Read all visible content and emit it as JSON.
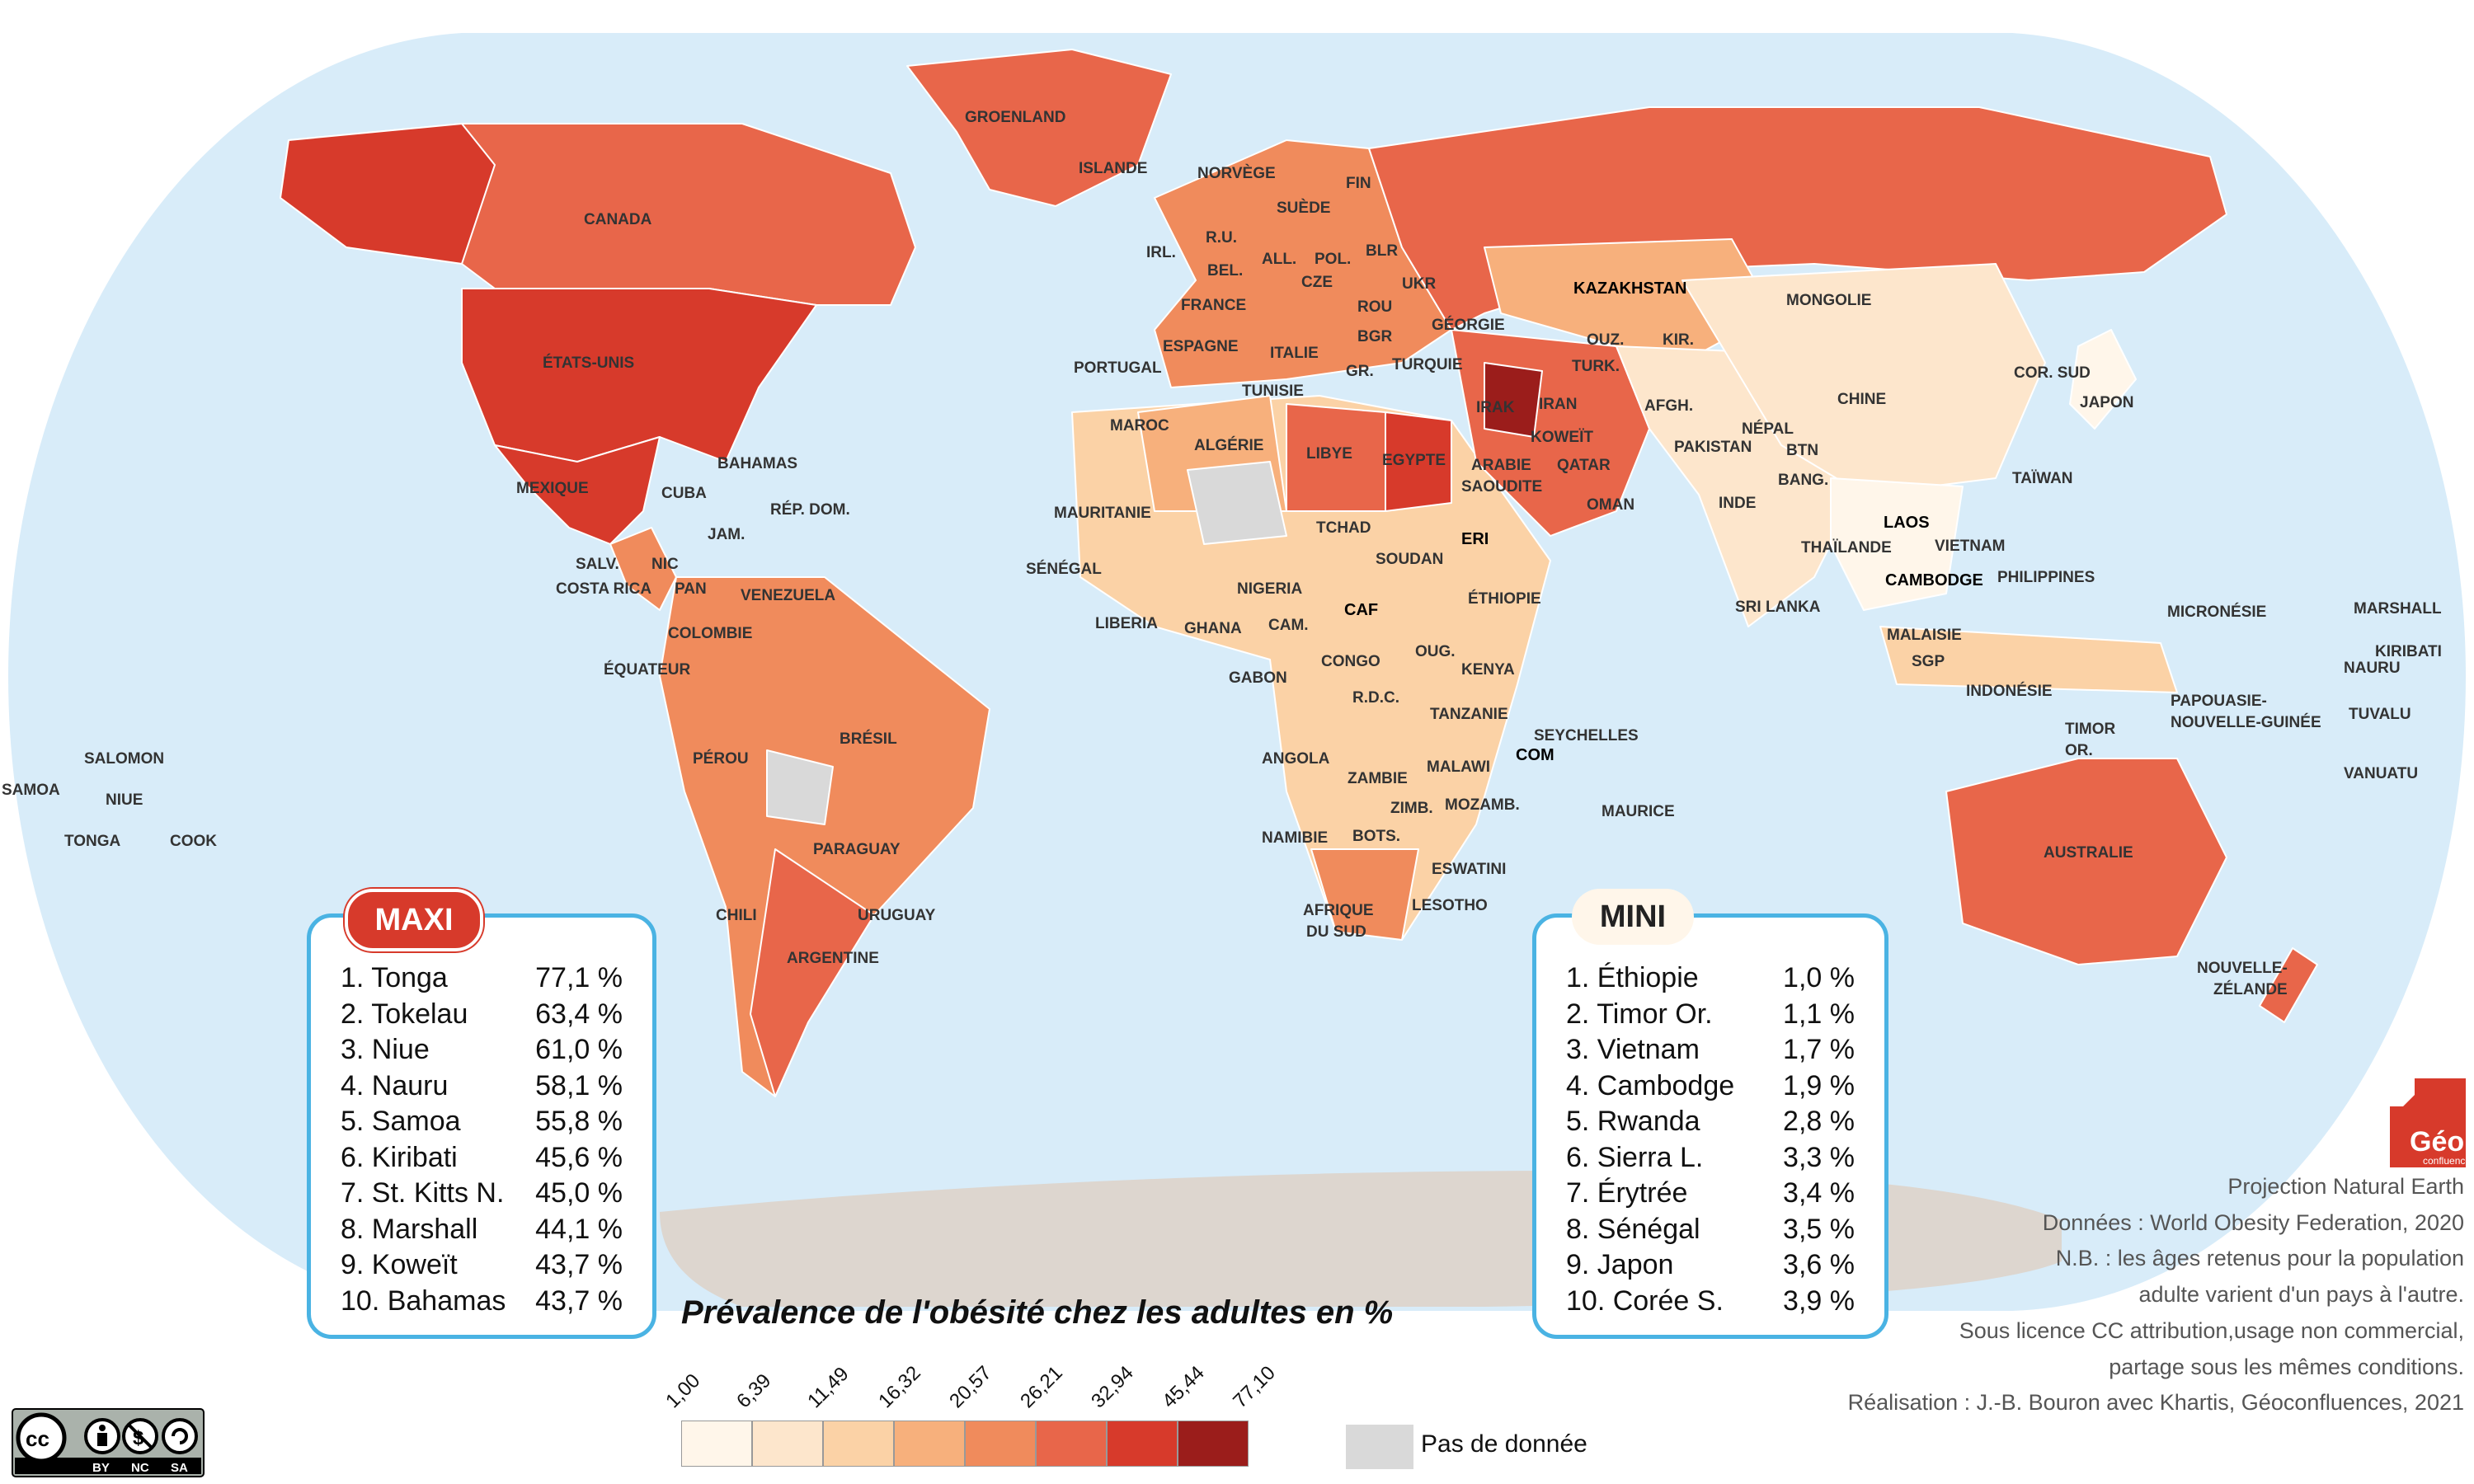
{
  "map": {
    "title": "Prévalence de l'obésité chez les adultes en %",
    "projection": "Projection Natural Earth",
    "colors": {
      "ocean": "#d8ecf9",
      "coast": "#8ccbed",
      "antarctica": "#ddd6cf",
      "nodata": "#d9d9d9",
      "c1": "#fff6ea",
      "c2": "#fde6cc",
      "c3": "#fbd2a6",
      "c4": "#f7b07c",
      "c5": "#f08b5c",
      "c6": "#e8664a",
      "c7": "#d73a2b",
      "c8": "#9b1d1b"
    },
    "labels": [
      {
        "text": "GROENLAND",
        "bold": false
      },
      {
        "text": "ISLANDE",
        "bold": false
      },
      {
        "text": "CANADA",
        "bold": false
      },
      {
        "text": "ÉTATS-UNIS",
        "bold": false
      },
      {
        "text": "MEXIQUE",
        "bold": false
      },
      {
        "text": "BAHAMAS",
        "bold": false
      },
      {
        "text": "CUBA",
        "bold": false
      },
      {
        "text": "RÉP. DOM.",
        "bold": false
      },
      {
        "text": "JAM.",
        "bold": false
      },
      {
        "text": "SALV.",
        "bold": false
      },
      {
        "text": "NIC",
        "bold": false
      },
      {
        "text": "COSTA RICA",
        "bold": false
      },
      {
        "text": "PAN",
        "bold": false
      },
      {
        "text": "VENEZUELA",
        "bold": false
      },
      {
        "text": "COLOMBIE",
        "bold": false
      },
      {
        "text": "ÉQUATEUR",
        "bold": false
      },
      {
        "text": "PÉROU",
        "bold": false
      },
      {
        "text": "BRÉSIL",
        "bold": false
      },
      {
        "text": "PARAGUAY",
        "bold": false
      },
      {
        "text": "CHILI",
        "bold": false
      },
      {
        "text": "URUGUAY",
        "bold": false
      },
      {
        "text": "ARGENTINE",
        "bold": false
      },
      {
        "text": "NORVÈGE",
        "bold": false
      },
      {
        "text": "SUÈDE",
        "bold": false
      },
      {
        "text": "FIN",
        "bold": false
      },
      {
        "text": "IRL.",
        "bold": false
      },
      {
        "text": "R.U.",
        "bold": false
      },
      {
        "text": "BEL.",
        "bold": false
      },
      {
        "text": "ALL.",
        "bold": false
      },
      {
        "text": "POL.",
        "bold": false
      },
      {
        "text": "BLR",
        "bold": false
      },
      {
        "text": "CZE",
        "bold": false
      },
      {
        "text": "UKR",
        "bold": false
      },
      {
        "text": "FRANCE",
        "bold": false
      },
      {
        "text": "ROU",
        "bold": false
      },
      {
        "text": "ESPAGNE",
        "bold": false
      },
      {
        "text": "ITALIE",
        "bold": false
      },
      {
        "text": "BGR",
        "bold": false
      },
      {
        "text": "GÉORGIE",
        "bold": false
      },
      {
        "text": "PORTUGAL",
        "bold": false
      },
      {
        "text": "GR.",
        "bold": false
      },
      {
        "text": "TURQUIE",
        "bold": false
      },
      {
        "text": "TUNISIE",
        "bold": false
      },
      {
        "text": "MAROC",
        "bold": false
      },
      {
        "text": "ALGÉRIE",
        "bold": false
      },
      {
        "text": "LIBYE",
        "bold": false
      },
      {
        "text": "EGYPTE",
        "bold": false
      },
      {
        "text": "MAURITANIE",
        "bold": false
      },
      {
        "text": "TCHAD",
        "bold": false
      },
      {
        "text": "SOUDAN",
        "bold": false
      },
      {
        "text": "ERI",
        "bold": true
      },
      {
        "text": "SÉNÉGAL",
        "bold": false
      },
      {
        "text": "NIGERIA",
        "bold": false
      },
      {
        "text": "CAF",
        "bold": true
      },
      {
        "text": "ÉTHIOPIE",
        "bold": false
      },
      {
        "text": "LIBERIA",
        "bold": false
      },
      {
        "text": "GHANA",
        "bold": false
      },
      {
        "text": "CAM.",
        "bold": false
      },
      {
        "text": "OUG.",
        "bold": false
      },
      {
        "text": "CONGO",
        "bold": false
      },
      {
        "text": "GABON",
        "bold": false
      },
      {
        "text": "KENYA",
        "bold": false
      },
      {
        "text": "R.D.C.",
        "bold": false
      },
      {
        "text": "TANZANIE",
        "bold": false
      },
      {
        "text": "SEYCHELLES",
        "bold": false
      },
      {
        "text": "ANGOLA",
        "bold": false
      },
      {
        "text": "MALAWI",
        "bold": false
      },
      {
        "text": "COM",
        "bold": true
      },
      {
        "text": "ZAMBIE",
        "bold": false
      },
      {
        "text": "ZIMB.",
        "bold": false
      },
      {
        "text": "MOZAMB.",
        "bold": false
      },
      {
        "text": "MAURICE",
        "bold": false
      },
      {
        "text": "NAMIBIE",
        "bold": false
      },
      {
        "text": "BOTS.",
        "bold": false
      },
      {
        "text": "ESWATINI",
        "bold": false
      },
      {
        "text": "LESOTHO",
        "bold": false
      },
      {
        "text": "AFRIQUE",
        "bold": false
      },
      {
        "text": "DU SUD",
        "bold": false
      },
      {
        "text": "KAZAKHSTAN",
        "bold": true
      },
      {
        "text": "MONGOLIE",
        "bold": false
      },
      {
        "text": "OUZ.",
        "bold": false
      },
      {
        "text": "KIR.",
        "bold": false
      },
      {
        "text": "TURK.",
        "bold": false
      },
      {
        "text": "IRAN",
        "bold": false
      },
      {
        "text": "AFGH.",
        "bold": false
      },
      {
        "text": "IRAK",
        "bold": false
      },
      {
        "text": "KOWEÏT",
        "bold": false
      },
      {
        "text": "QATAR",
        "bold": false
      },
      {
        "text": "ARABIE",
        "bold": false
      },
      {
        "text": "SAOUDITE",
        "bold": false
      },
      {
        "text": "OMAN",
        "bold": false
      },
      {
        "text": "PAKISTAN",
        "bold": false
      },
      {
        "text": "NÉPAL",
        "bold": false
      },
      {
        "text": "BTN",
        "bold": false
      },
      {
        "text": "BANG.",
        "bold": false
      },
      {
        "text": "INDE",
        "bold": false
      },
      {
        "text": "CHINE",
        "bold": false
      },
      {
        "text": "COR. SUD",
        "bold": false
      },
      {
        "text": "JAPON",
        "bold": false
      },
      {
        "text": "TAÏWAN",
        "bold": false
      },
      {
        "text": "LAOS",
        "bold": true
      },
      {
        "text": "VIETNAM",
        "bold": false
      },
      {
        "text": "THAÏLANDE",
        "bold": false
      },
      {
        "text": "CAMBODGE",
        "bold": true
      },
      {
        "text": "PHILIPPINES",
        "bold": false
      },
      {
        "text": "SRI LANKA",
        "bold": false
      },
      {
        "text": "MALAISIE",
        "bold": false
      },
      {
        "text": "SGP",
        "bold": false
      },
      {
        "text": "INDONÉSIE",
        "bold": false
      },
      {
        "text": "MICRONÉSIE",
        "bold": false
      },
      {
        "text": "MARSHALL",
        "bold": false
      },
      {
        "text": "KIRIBATI",
        "bold": false
      },
      {
        "text": "NAURU",
        "bold": false
      },
      {
        "text": "PAPOUASIE-",
        "bold": false
      },
      {
        "text": "NOUVELLE-GUINÉE",
        "bold": false
      },
      {
        "text": "TUVALU",
        "bold": false
      },
      {
        "text": "TIMOR",
        "bold": false
      },
      {
        "text": "OR.",
        "bold": false
      },
      {
        "text": "VANUATU",
        "bold": false
      },
      {
        "text": "AUSTRALIE",
        "bold": false
      },
      {
        "text": "NOUVELLE-",
        "bold": false
      },
      {
        "text": "ZÉLANDE",
        "bold": false
      },
      {
        "text": "SALOMON",
        "bold": false
      },
      {
        "text": "SAMOA",
        "bold": false
      },
      {
        "text": "NIUE",
        "bold": false
      },
      {
        "text": "TONGA",
        "bold": false
      },
      {
        "text": "COOK",
        "bold": false
      }
    ]
  },
  "maxi": {
    "tag": "MAXI",
    "rows": [
      {
        "rank": "1. Tonga",
        "value": "77,1 %"
      },
      {
        "rank": "2. Tokelau",
        "value": "63,4 %"
      },
      {
        "rank": "3. Niue",
        "value": "61,0 %"
      },
      {
        "rank": "4. Nauru",
        "value": "58,1 %"
      },
      {
        "rank": "5. Samoa",
        "value": "55,8 %"
      },
      {
        "rank": "6. Kiribati",
        "value": "45,6 %"
      },
      {
        "rank": "7. St. Kitts N.",
        "value": "45,0 %"
      },
      {
        "rank": "8. Marshall",
        "value": "44,1 %"
      },
      {
        "rank": "9. Koweït",
        "value": "43,7 %"
      },
      {
        "rank": "10. Bahamas",
        "value": "43,7 %"
      }
    ]
  },
  "mini": {
    "tag": "MINI",
    "rows": [
      {
        "rank": "1. Éthiopie",
        "value": "1,0 %"
      },
      {
        "rank": "2. Timor Or.",
        "value": "1,1 %"
      },
      {
        "rank": "3. Vietnam",
        "value": "1,7 %"
      },
      {
        "rank": "4. Cambodge",
        "value": "1,9 %"
      },
      {
        "rank": "5. Rwanda",
        "value": "2,8 %"
      },
      {
        "rank": "6. Sierra L.",
        "value": "3,3 %"
      },
      {
        "rank": "7. Érytrée",
        "value": "3,4 %"
      },
      {
        "rank": "8. Sénégal",
        "value": "3,5 %"
      },
      {
        "rank": "9. Japon",
        "value": "3,6 %"
      },
      {
        "rank": "10. Corée S.",
        "value": "3,9 %"
      }
    ]
  },
  "legend": {
    "breaks": [
      "1,00",
      "6,39",
      "11,49",
      "16,32",
      "20,57",
      "26,21",
      "32,94",
      "45,44",
      "77,10"
    ],
    "colors": [
      "#fff6ea",
      "#fde6cc",
      "#fbd2a6",
      "#f7b07c",
      "#f08b5c",
      "#e8664a",
      "#d73a2b",
      "#9b1d1b"
    ],
    "nodata_label": "Pas de donnée"
  },
  "credits": {
    "lines": [
      "Projection Natural Earth",
      "Données : World Obesity Federation, 2020",
      "N.B. : les âges retenus pour la population",
      "adulte varient d'un pays à l'autre.",
      "Sous licence CC attribution,usage non commercial,",
      "partage sous les mêmes conditions.",
      "Réalisation : J.-B. Bouron avec Khartis, Géoconfluences, 2021"
    ],
    "logo_text": "Géo",
    "logo_sub": "confluences",
    "cc_labels": [
      "BY",
      "NC",
      "SA"
    ]
  }
}
